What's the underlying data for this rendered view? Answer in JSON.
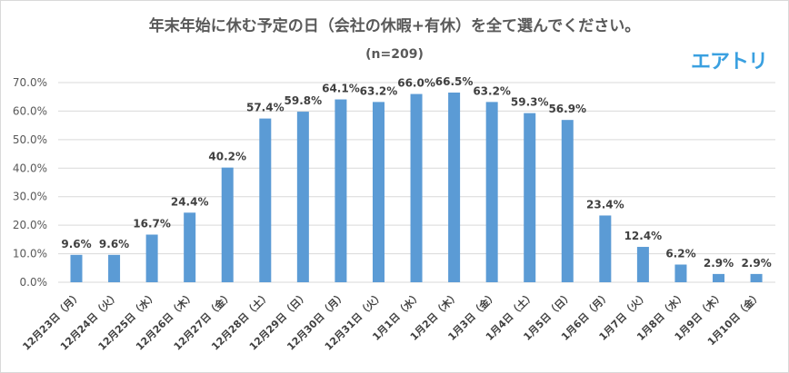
{
  "chart_data": {
    "type": "bar",
    "title": "年末年始に休む予定の日（会社の休暇+有休）を全て選んでください。",
    "subtitle": "(n=209)",
    "logo": "エアトリ",
    "categories": [
      "12月23日（月）",
      "12月24日（火）",
      "12月25日（水）",
      "12月26日（木）",
      "12月27日（金）",
      "12月28日（土）",
      "12月29日（日）",
      "12月30日（月）",
      "12月31日（火）",
      "1月1日（水）",
      "1月2日（木）",
      "1月3日（金）",
      "1月4日（土）",
      "1月5日（日）",
      "1月6日（月）",
      "1月7日（火）",
      "1月8日（水）",
      "1月9日（木）",
      "1月10日（金）"
    ],
    "values": [
      9.6,
      9.6,
      16.7,
      24.4,
      40.2,
      57.4,
      59.8,
      64.1,
      63.2,
      66.0,
      66.5,
      63.2,
      59.3,
      56.9,
      23.4,
      12.4,
      6.2,
      2.9,
      2.9
    ],
    "labels": [
      "9.6%",
      "9.6%",
      "16.7%",
      "24.4%",
      "40.2%",
      "57.4%",
      "59.8%",
      "64.1%",
      "63.2%",
      "66.0%",
      "66.5%",
      "63.2%",
      "59.3%",
      "56.9%",
      "23.4%",
      "12.4%",
      "6.2%",
      "2.9%",
      "2.9%"
    ],
    "yticks": [
      "0.0%",
      "10.0%",
      "20.0%",
      "30.0%",
      "40.0%",
      "50.0%",
      "60.0%",
      "70.0%"
    ],
    "ylim": [
      0,
      70
    ],
    "grid": true,
    "xlabel": "",
    "ylabel": "",
    "bar_color": "#5b9bd5"
  }
}
